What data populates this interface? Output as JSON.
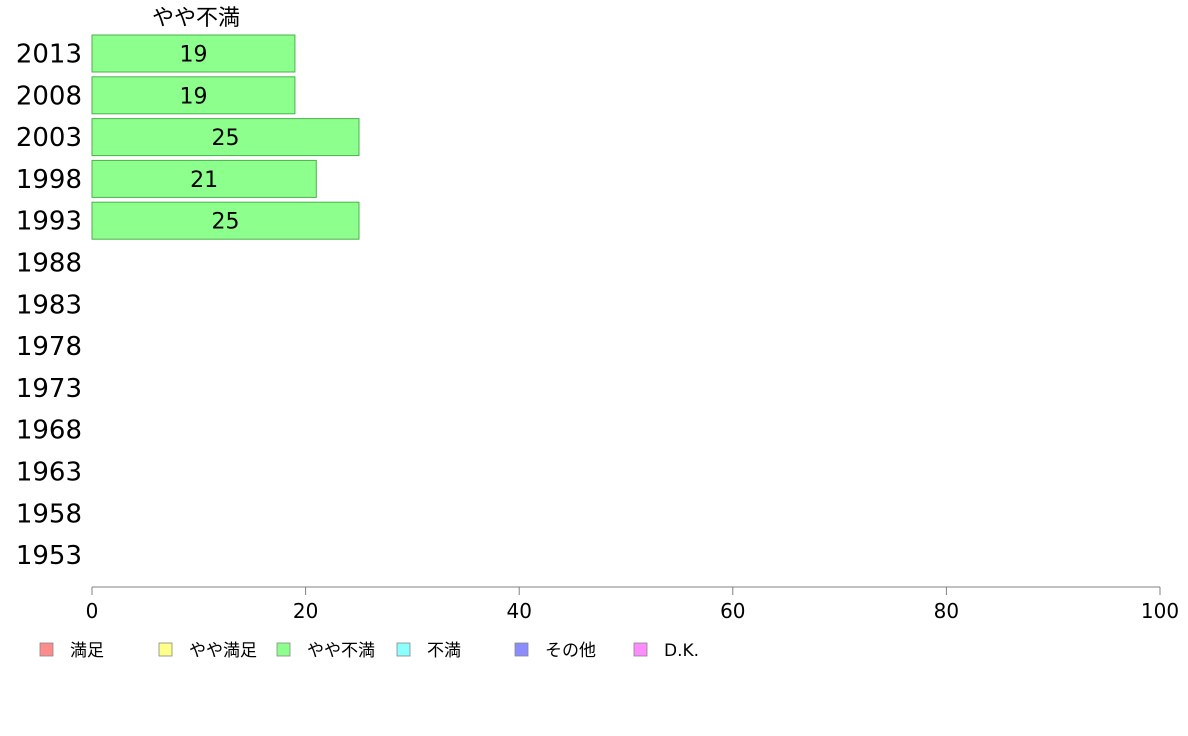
{
  "chart_data": {
    "type": "bar",
    "orientation": "horizontal",
    "series_title": "やや不満",
    "categories": [
      "2013",
      "2008",
      "2003",
      "1998",
      "1993",
      "1988",
      "1983",
      "1978",
      "1973",
      "1968",
      "1963",
      "1958",
      "1953"
    ],
    "series": [
      {
        "name": "やや不満",
        "values": [
          19,
          19,
          25,
          21,
          25,
          null,
          null,
          null,
          null,
          null,
          null,
          null,
          null
        ]
      }
    ],
    "xlim": [
      0,
      100
    ],
    "x_ticks": [
      0,
      20,
      40,
      60,
      80,
      100
    ],
    "grid": false,
    "legend": {
      "placement": "bottom-left",
      "entries": [
        {
          "label": "満足",
          "color": "#ff8c8c"
        },
        {
          "label": "やや満足",
          "color": "#ffff8c"
        },
        {
          "label": "やや不満",
          "color": "#8cff8c"
        },
        {
          "label": "不満",
          "color": "#8cffff"
        },
        {
          "label": "その他",
          "color": "#8c8cff"
        },
        {
          "label": "D.K.",
          "color": "#ff8cff"
        }
      ]
    },
    "bar_color": "#8cff8c",
    "bar_edge_color": "#4cb04c",
    "axis_color": "#808080"
  }
}
